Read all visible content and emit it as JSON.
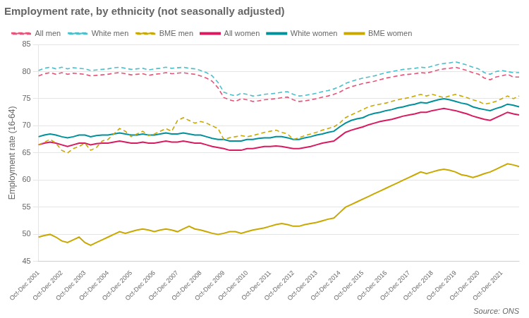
{
  "chart_data": {
    "type": "line",
    "title": "Employment rate, by ethnicity (not seasonally adjusted)",
    "y_label": "Employment rate (16-64)",
    "annotations": [
      "Source: ONS"
    ],
    "categories": [
      "Oct-Dec 2001",
      null,
      null,
      null,
      "Oct-Dec 2002",
      null,
      null,
      null,
      "Oct-Dec 2003",
      null,
      null,
      null,
      "Oct-Dec 2004",
      null,
      null,
      null,
      "Oct-Dec 2005",
      null,
      null,
      null,
      "Oct-Dec 2006",
      null,
      null,
      null,
      "Oct-Dec 2007",
      null,
      null,
      null,
      "Oct-Dec 2008",
      null,
      null,
      null,
      "Oct-Dec 2009",
      null,
      null,
      null,
      "Oct-Dec 2010",
      null,
      null,
      null,
      "Oct-Dec 2011",
      null,
      null,
      null,
      "Oct-Dec 2012",
      null,
      null,
      null,
      "Oct-Dec 2013",
      null,
      null,
      null,
      "Oct-Dec 2014",
      null,
      null,
      null,
      "Oct-Dec 2015",
      null,
      null,
      null,
      "Oct-Dec 2016",
      null,
      null,
      null,
      "Oct-Dec 2017",
      null,
      null,
      null,
      "Oct-Dec 2018",
      null,
      null,
      null,
      "Oct-Dec 2019",
      null,
      null,
      null,
      "Oct-Dec 2020",
      null,
      null,
      null,
      "Oct-Dec 2021",
      null,
      null,
      null
    ],
    "series": [
      {
        "name": "All men",
        "color": "#e8537a",
        "line_style": "dashed",
        "values": [
          79.2,
          79.6,
          79.8,
          79.5,
          79.8,
          79.5,
          79.7,
          79.6,
          79.5,
          79.2,
          79.3,
          79.4,
          79.5,
          79.7,
          79.8,
          79.6,
          79.4,
          79.5,
          79.6,
          79.3,
          79.5,
          79.6,
          79.8,
          79.6,
          79.7,
          79.8,
          79.6,
          79.5,
          79.2,
          78.8,
          78.2,
          77.0,
          75.2,
          74.8,
          74.5,
          75.0,
          74.8,
          74.5,
          74.6,
          74.8,
          74.9,
          75.0,
          75.2,
          75.3,
          74.8,
          74.5,
          74.6,
          74.8,
          75.0,
          75.3,
          75.5,
          75.8,
          76.2,
          76.8,
          77.2,
          77.5,
          77.8,
          78.0,
          78.2,
          78.5,
          78.8,
          79.0,
          79.2,
          79.4,
          79.5,
          79.6,
          79.8,
          79.7,
          80.0,
          80.3,
          80.5,
          80.6,
          80.8,
          80.5,
          80.2,
          79.8,
          79.5,
          78.8,
          78.5,
          79.0,
          79.2,
          79.5,
          79.0,
          79.0
        ]
      },
      {
        "name": "White men",
        "color": "#4bbfcc",
        "line_style": "dashed",
        "values": [
          80.2,
          80.6,
          80.8,
          80.5,
          80.8,
          80.5,
          80.7,
          80.6,
          80.5,
          80.2,
          80.3,
          80.4,
          80.5,
          80.7,
          80.8,
          80.6,
          80.4,
          80.5,
          80.6,
          80.3,
          80.5,
          80.6,
          80.8,
          80.6,
          80.7,
          80.8,
          80.6,
          80.5,
          80.2,
          79.8,
          79.2,
          78.0,
          76.2,
          75.8,
          75.5,
          76.0,
          75.8,
          75.5,
          75.6,
          75.8,
          75.9,
          76.0,
          76.2,
          76.3,
          75.8,
          75.5,
          75.6,
          75.8,
          76.0,
          76.3,
          76.5,
          76.8,
          77.2,
          77.8,
          78.2,
          78.5,
          78.8,
          79.0,
          79.2,
          79.5,
          79.8,
          80.0,
          80.2,
          80.4,
          80.5,
          80.6,
          80.8,
          80.7,
          81.0,
          81.3,
          81.5,
          81.6,
          81.8,
          81.5,
          81.2,
          80.8,
          80.5,
          79.8,
          79.5,
          80.0,
          80.2,
          80.0,
          79.8,
          79.8
        ]
      },
      {
        "name": "BME men",
        "color": "#c9a800",
        "line_style": "dashed",
        "values": [
          66.5,
          67.0,
          67.5,
          66.8,
          65.5,
          65.0,
          65.8,
          66.2,
          66.8,
          65.5,
          66.0,
          67.2,
          67.5,
          68.5,
          69.5,
          69.0,
          68.0,
          68.5,
          69.0,
          68.2,
          68.5,
          69.0,
          69.5,
          69.0,
          71.0,
          71.5,
          71.0,
          70.5,
          70.8,
          70.5,
          70.0,
          69.5,
          67.5,
          67.8,
          68.0,
          68.2,
          68.0,
          68.2,
          68.5,
          68.8,
          69.0,
          69.2,
          68.8,
          68.5,
          67.5,
          67.8,
          68.2,
          68.5,
          68.8,
          69.2,
          69.5,
          69.8,
          70.5,
          71.5,
          72.0,
          72.5,
          73.0,
          73.5,
          73.8,
          74.0,
          74.2,
          74.5,
          74.8,
          75.0,
          75.2,
          75.5,
          75.8,
          75.5,
          75.8,
          75.5,
          75.2,
          75.5,
          75.8,
          75.5,
          75.2,
          74.8,
          74.5,
          74.0,
          74.2,
          74.5,
          75.0,
          75.5,
          75.0,
          75.5
        ]
      },
      {
        "name": "All women",
        "color": "#d81b60",
        "line_style": "solid",
        "values": [
          66.5,
          66.8,
          67.0,
          66.8,
          66.5,
          66.2,
          66.5,
          66.8,
          66.8,
          66.5,
          66.7,
          66.8,
          66.8,
          67.0,
          67.2,
          67.0,
          66.8,
          66.8,
          67.0,
          66.8,
          66.8,
          67.0,
          67.2,
          67.0,
          67.0,
          67.2,
          67.0,
          66.8,
          66.8,
          66.5,
          66.2,
          66.0,
          65.8,
          65.5,
          65.5,
          65.5,
          65.8,
          65.8,
          66.0,
          66.2,
          66.2,
          66.3,
          66.2,
          66.0,
          65.8,
          65.8,
          66.0,
          66.2,
          66.5,
          66.8,
          67.0,
          67.2,
          68.0,
          68.8,
          69.2,
          69.5,
          69.8,
          70.2,
          70.5,
          70.8,
          71.0,
          71.2,
          71.5,
          71.8,
          72.0,
          72.2,
          72.5,
          72.5,
          72.8,
          73.0,
          73.2,
          73.0,
          72.8,
          72.5,
          72.2,
          71.8,
          71.5,
          71.2,
          71.0,
          71.5,
          72.0,
          72.5,
          72.2,
          72.0
        ]
      },
      {
        "name": "White women",
        "color": "#00909a",
        "line_style": "solid",
        "values": [
          68.0,
          68.3,
          68.5,
          68.3,
          68.0,
          67.8,
          68.0,
          68.3,
          68.3,
          68.0,
          68.2,
          68.3,
          68.3,
          68.5,
          68.7,
          68.5,
          68.3,
          68.3,
          68.5,
          68.3,
          68.3,
          68.5,
          68.7,
          68.5,
          68.5,
          68.7,
          68.5,
          68.3,
          68.3,
          68.0,
          67.7,
          67.5,
          67.5,
          67.2,
          67.2,
          67.2,
          67.5,
          67.5,
          67.7,
          67.8,
          67.8,
          68.0,
          68.0,
          67.8,
          67.5,
          67.5,
          67.8,
          68.0,
          68.3,
          68.5,
          68.8,
          69.0,
          69.8,
          70.5,
          71.0,
          71.3,
          71.5,
          72.0,
          72.3,
          72.5,
          72.8,
          73.0,
          73.3,
          73.5,
          73.8,
          74.0,
          74.3,
          74.2,
          74.5,
          74.8,
          75.0,
          74.8,
          74.5,
          74.2,
          74.0,
          73.5,
          73.2,
          73.0,
          72.8,
          73.2,
          73.5,
          74.0,
          73.8,
          73.5
        ]
      },
      {
        "name": "BME women",
        "color": "#c9a800",
        "line_style": "solid",
        "values": [
          49.5,
          49.8,
          50.0,
          49.5,
          48.8,
          48.5,
          49.0,
          49.5,
          48.5,
          48.0,
          48.5,
          49.0,
          49.5,
          50.0,
          50.5,
          50.2,
          50.5,
          50.8,
          51.0,
          50.8,
          50.5,
          50.8,
          51.0,
          50.8,
          50.5,
          51.0,
          51.5,
          51.0,
          50.8,
          50.5,
          50.2,
          50.0,
          50.2,
          50.5,
          50.5,
          50.2,
          50.5,
          50.8,
          51.0,
          51.2,
          51.5,
          51.8,
          52.0,
          51.8,
          51.5,
          51.5,
          51.8,
          52.0,
          52.2,
          52.5,
          52.8,
          53.0,
          54.0,
          55.0,
          55.5,
          56.0,
          56.5,
          57.0,
          57.5,
          58.0,
          58.5,
          59.0,
          59.5,
          60.0,
          60.5,
          61.0,
          61.5,
          61.2,
          61.5,
          61.8,
          62.0,
          61.8,
          61.5,
          61.0,
          60.8,
          60.5,
          60.8,
          61.2,
          61.5,
          62.0,
          62.5,
          63.0,
          62.8,
          62.5
        ]
      }
    ],
    "ylim": [
      45,
      85
    ],
    "yticks": [
      45,
      50,
      55,
      60,
      65,
      70,
      75,
      80,
      85
    ],
    "grid": true,
    "legend": "upper left"
  }
}
